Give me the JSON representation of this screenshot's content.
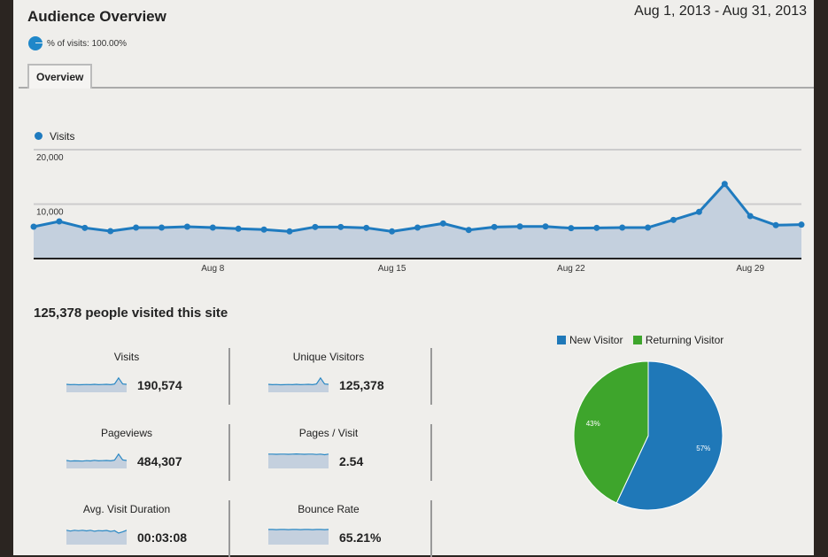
{
  "header": {
    "title": "Audience Overview",
    "date_range": "Aug 1, 2013 - Aug 31, 2013",
    "segment": "% of visits: 100.00%"
  },
  "tabs": [
    {
      "label": "Overview",
      "active": true
    }
  ],
  "colors": {
    "line": "#1f7bbf",
    "area": "#c4d0de",
    "new": "#1f78b8",
    "returning": "#3ea52c"
  },
  "chart_data": [
    {
      "type": "area",
      "title": "",
      "legend": [
        "Visits"
      ],
      "ylabel": "",
      "ylim": [
        0,
        20000
      ],
      "yticks": [
        {
          "v": 20000,
          "label": "20,000"
        },
        {
          "v": 10000,
          "label": "10,000"
        }
      ],
      "xticks": [
        {
          "i": 7,
          "label": "Aug 8"
        },
        {
          "i": 14,
          "label": "Aug 15"
        },
        {
          "i": 21,
          "label": "Aug 22"
        },
        {
          "i": 28,
          "label": "Aug 29"
        }
      ],
      "x": [
        "Aug 1",
        "Aug 2",
        "Aug 3",
        "Aug 4",
        "Aug 5",
        "Aug 6",
        "Aug 7",
        "Aug 8",
        "Aug 9",
        "Aug 10",
        "Aug 11",
        "Aug 12",
        "Aug 13",
        "Aug 14",
        "Aug 15",
        "Aug 16",
        "Aug 17",
        "Aug 18",
        "Aug 19",
        "Aug 20",
        "Aug 21",
        "Aug 22",
        "Aug 23",
        "Aug 24",
        "Aug 25",
        "Aug 26",
        "Aug 27",
        "Aug 28",
        "Aug 29",
        "Aug 30",
        "Aug 31"
      ],
      "series": [
        {
          "name": "Visits",
          "values": [
            5850,
            6830,
            5640,
            5040,
            5690,
            5690,
            5850,
            5690,
            5480,
            5320,
            4990,
            5800,
            5800,
            5640,
            4990,
            5690,
            6450,
            5250,
            5800,
            5900,
            5900,
            5580,
            5640,
            5690,
            5690,
            7100,
            8570,
            13700,
            7800,
            6130,
            6230
          ]
        }
      ]
    },
    {
      "type": "pie",
      "legend": [
        "New Visitor",
        "Returning Visitor"
      ],
      "slices": [
        {
          "name": "New Visitor",
          "value": 57,
          "label": "57%"
        },
        {
          "name": "Returning Visitor",
          "value": 43,
          "label": "43%"
        }
      ]
    }
  ],
  "summary": {
    "headline": "125,378 people visited this site"
  },
  "metrics": [
    {
      "label": "Visits",
      "value": "190,574",
      "spark": [
        5,
        4.8,
        4.9,
        4.7,
        4.8,
        4.9,
        4.8,
        5,
        4.8,
        4.9,
        5,
        4.8,
        5.2,
        9,
        5.2,
        5
      ]
    },
    {
      "label": "Unique Visitors",
      "value": "125,378",
      "spark": [
        5,
        4.8,
        4.9,
        4.7,
        4.8,
        4.9,
        4.8,
        5,
        4.8,
        4.9,
        5,
        4.8,
        5.2,
        9,
        5.2,
        5
      ]
    },
    {
      "label": "Pageviews",
      "value": "484,307",
      "spark": [
        5,
        4.6,
        4.8,
        4.7,
        4.6,
        4.9,
        4.7,
        5.1,
        4.8,
        4.9,
        5,
        4.8,
        5.2,
        9,
        5.4,
        5
      ]
    },
    {
      "label": "Pages / Visit",
      "value": "2.54",
      "spark": [
        9,
        9,
        8.9,
        9,
        9,
        8.9,
        9,
        9.1,
        9,
        8.9,
        9,
        9,
        8.8,
        9,
        8.6,
        9
      ]
    },
    {
      "label": "Avg. Visit Duration",
      "value": "00:03:08",
      "spark": [
        9,
        8.5,
        9,
        8.7,
        9,
        8.6,
        9,
        8.4,
        8.8,
        8.6,
        8.9,
        8.3,
        8.7,
        7.2,
        8,
        9
      ]
    },
    {
      "label": "Bounce Rate",
      "value": "65.21%",
      "spark": [
        9.5,
        9.5,
        9.4,
        9.5,
        9.5,
        9.4,
        9.5,
        9.5,
        9.4,
        9.5,
        9.5,
        9.4,
        9.5,
        9.5,
        9.4,
        9.5
      ]
    }
  ]
}
